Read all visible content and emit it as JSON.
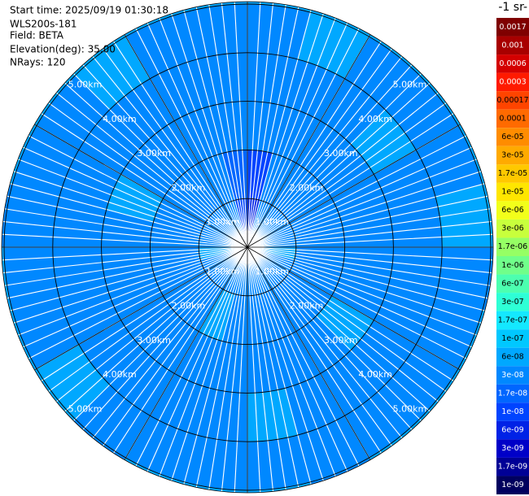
{
  "chart_data": {
    "type": "ppi",
    "annotations": [
      "Start time: 2025/09/19 01:30:18",
      "WLS200s-181",
      "Field: BETA",
      "Elevation(deg): 35.00",
      "NRays: 120"
    ],
    "rlim": [
      0,
      5.05
    ],
    "rticks": [
      {
        "value": 1,
        "label": "1.00km"
      },
      {
        "value": 2,
        "label": "2.00km"
      },
      {
        "value": 3,
        "label": "3.00km"
      },
      {
        "value": 4,
        "label": "4.00km"
      },
      {
        "value": 5,
        "label": "5.00km"
      }
    ],
    "colorbar": {
      "title": "-1 sr-",
      "ticks": [
        0.0017,
        0.001,
        0.0006,
        0.0003,
        0.00017,
        0.0001,
        {
          "value": 6e-05,
          "label": "6e-05"
        },
        {
          "value": 3e-05,
          "label": "3e-05"
        },
        {
          "value": 1.7e-05,
          "label": "1.7e-05"
        },
        {
          "value": 1e-05,
          "label": "1e-05"
        },
        {
          "value": 6e-06,
          "label": "6e-06"
        },
        {
          "value": 3e-06,
          "label": "3e-06"
        },
        {
          "value": 1.7e-06,
          "label": "1.7e-06"
        },
        {
          "value": 1e-06,
          "label": "1e-06"
        },
        {
          "value": 6e-07,
          "label": "6e-07"
        },
        {
          "value": 3e-07,
          "label": "3e-07"
        },
        {
          "value": 1.7e-07,
          "label": "1.7e-07"
        },
        {
          "value": 1e-07,
          "label": "1e-07"
        },
        {
          "value": 6e-08,
          "label": "6e-08"
        },
        {
          "value": 3e-08,
          "label": "3e-08"
        },
        {
          "value": 1.7e-08,
          "label": "1.7e-08"
        },
        {
          "value": 1e-08,
          "label": "1e-08"
        },
        {
          "value": 6e-09,
          "label": "6e-09"
        },
        {
          "value": 3e-09,
          "label": "3e-09"
        },
        {
          "value": 1.7e-09,
          "label": "1.7e-09"
        },
        {
          "value": 1e-09,
          "label": "1e-09"
        }
      ],
      "colors": [
        "#7f0000",
        "#a80000",
        "#d40000",
        "#ff1a00",
        "#ff4400",
        "#ff6a00",
        "#ff8c00",
        "#ffaa00",
        "#ffc800",
        "#ffe600",
        "#f2ff1a",
        "#c8ff3c",
        "#96ff64",
        "#70ff8a",
        "#4cffb0",
        "#2effd6",
        "#14e8ff",
        "#00c8ff",
        "#00a8ff",
        "#0088ff",
        "#0066ff",
        "#0044ff",
        "#0022e6",
        "#0000c8",
        "#000096",
        "#00005e"
      ]
    },
    "values": [
      [
        6e-09,
        1e-08,
        3e-08,
        3e-08,
        3e-08,
        6e-08
      ],
      [
        3e-08,
        3e-08,
        3e-08,
        3e-08,
        6e-08,
        6e-08
      ],
      [
        3e-08,
        3e-08,
        3e-08,
        3e-08,
        3e-08,
        6e-08
      ],
      [
        3e-08,
        3e-08,
        3e-08,
        6e-08,
        3e-08,
        6e-08
      ],
      [
        3e-08,
        3e-08,
        3e-08,
        3e-08,
        3e-08,
        6e-08
      ],
      [
        3e-08,
        3e-08,
        3e-08,
        3e-08,
        6e-08,
        6e-08
      ],
      [
        6e-08,
        3e-08,
        3e-08,
        3e-08,
        3e-08,
        3e-08
      ],
      [
        3e-08,
        3e-08,
        3e-08,
        3e-08,
        3e-08,
        6e-08
      ],
      [
        3e-08,
        3e-08,
        6e-08,
        3e-08,
        3e-08,
        6e-08
      ],
      [
        3e-08,
        3e-08,
        3e-08,
        3e-08,
        3e-08,
        6e-08
      ],
      [
        3e-08,
        3e-08,
        3e-08,
        3e-08,
        3e-08,
        3e-08
      ],
      [
        3e-08,
        3e-08,
        3e-08,
        6e-08,
        3e-08,
        6e-08
      ],
      [
        3e-08,
        3e-08,
        3e-08,
        3e-08,
        3e-08,
        6e-08
      ],
      [
        3e-08,
        6e-08,
        3e-08,
        3e-08,
        3e-08,
        6e-08
      ],
      [
        3e-08,
        3e-08,
        3e-08,
        3e-08,
        3e-08,
        3e-08
      ],
      [
        3e-08,
        3e-08,
        3e-08,
        3e-08,
        6e-08,
        6e-08
      ],
      [
        3e-08,
        3e-08,
        3e-08,
        3e-08,
        3e-08,
        6e-08
      ],
      [
        6e-08,
        3e-08,
        3e-08,
        3e-08,
        3e-08,
        6e-08
      ],
      [
        3e-08,
        3e-08,
        3e-08,
        3e-08,
        3e-08,
        3e-08
      ],
      [
        3e-08,
        3e-08,
        6e-08,
        3e-08,
        3e-08,
        6e-08
      ],
      [
        3e-08,
        3e-08,
        3e-08,
        3e-08,
        3e-08,
        6e-08
      ],
      [
        3e-08,
        3e-08,
        3e-08,
        3e-08,
        6e-08,
        6e-08
      ],
      [
        3e-08,
        3e-08,
        3e-08,
        3e-08,
        3e-08,
        6e-08
      ],
      [
        1e-08,
        1.7e-08,
        3e-08,
        3e-08,
        3e-08,
        6e-08
      ]
    ]
  }
}
